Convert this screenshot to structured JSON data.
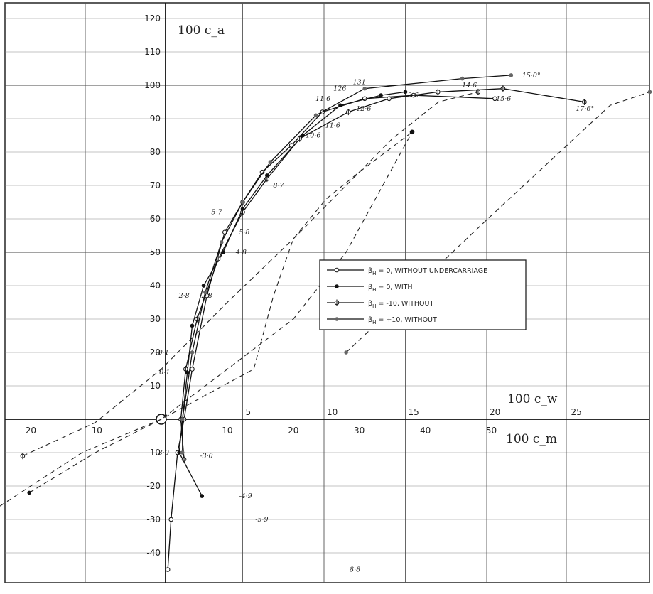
{
  "chart_data": {
    "type": "line",
    "title": "",
    "ylabel": "100 c_a",
    "xlabel_top": "100 c_w",
    "xlabel_bottom": "100 c_m",
    "ylim": [
      -47,
      122
    ],
    "xlim_w": [
      -5,
      29
    ],
    "xlim_m": [
      -22.5,
      50.5
    ],
    "y_ticks": [
      "120",
      "110",
      "100",
      "90",
      "80",
      "70",
      "60",
      "50",
      "40",
      "30",
      "20",
      "10",
      "-10",
      "-20",
      "-30",
      "-40"
    ],
    "y_tick_values": [
      120,
      110,
      100,
      90,
      80,
      70,
      60,
      50,
      40,
      30,
      20,
      10,
      -10,
      -20,
      -30,
      -40
    ],
    "x_ticks_w": [
      "5",
      "10",
      "15",
      "20",
      "25"
    ],
    "x_tick_values_w": [
      5,
      10,
      15,
      20,
      25
    ],
    "x_ticks_m": [
      "-20",
      "-10",
      "10",
      "20",
      "30",
      "40",
      "50"
    ],
    "x_tick_values_m": [
      -20,
      -10,
      10,
      20,
      30,
      40,
      50
    ],
    "grid": true,
    "legend_position": "center-right",
    "legend": [
      {
        "beta": "β",
        "sub": "H",
        "rest": " = 0,  WITHOUT  UNDERCARRIAGE"
      },
      {
        "beta": "β",
        "sub": "H",
        "rest": " = 0,  WITH"
      },
      {
        "beta": "β",
        "sub": "H",
        "rest": " = -10, WITHOUT"
      },
      {
        "beta": "β",
        "sub": "H",
        "rest": " = +10, WITHOUT"
      }
    ],
    "series": [
      {
        "marker": "open",
        "points": [
          [
            0.4,
            -45
          ],
          [
            0.6,
            -30
          ],
          [
            1.0,
            -10
          ],
          [
            1.4,
            0
          ],
          [
            1.9,
            15
          ],
          [
            2.8,
            37
          ],
          [
            3.9,
            56
          ],
          [
            5.0,
            65
          ],
          [
            6.2,
            74
          ],
          [
            8.0,
            82
          ],
          [
            9.9,
            92
          ],
          [
            12.5,
            96
          ],
          [
            15.5,
            97
          ],
          [
            20.5,
            96
          ]
        ]
      },
      {
        "marker": "filled",
        "points": [
          [
            2.5,
            -23
          ],
          [
            1.1,
            -10
          ],
          [
            1.3,
            0
          ],
          [
            1.6,
            14
          ],
          [
            1.9,
            28
          ],
          [
            2.6,
            40
          ],
          [
            3.8,
            50
          ],
          [
            5.0,
            63
          ],
          [
            6.5,
            73
          ],
          [
            8.7,
            85
          ],
          [
            11.0,
            94
          ],
          [
            13.5,
            97
          ],
          [
            15.0,
            98
          ]
        ]
      },
      {
        "marker": "half",
        "points": [
          [
            1.4,
            -12
          ],
          [
            1.2,
            0
          ],
          [
            1.5,
            15
          ],
          [
            2.2,
            30
          ],
          [
            3.5,
            48
          ],
          [
            5.0,
            62
          ],
          [
            6.5,
            72
          ],
          [
            8.5,
            84
          ],
          [
            11.5,
            92
          ],
          [
            14.0,
            96
          ],
          [
            17.0,
            98
          ],
          [
            21.0,
            99
          ],
          [
            26.0,
            95
          ]
        ]
      },
      {
        "marker": "grey",
        "points": [
          [
            1.3,
            -10
          ],
          [
            1.3,
            0
          ],
          [
            1.9,
            20
          ],
          [
            2.7,
            38
          ],
          [
            3.7,
            53
          ],
          [
            5.0,
            65
          ],
          [
            6.7,
            77
          ],
          [
            9.5,
            91
          ],
          [
            12.5,
            99
          ],
          [
            18.5,
            102
          ],
          [
            21.5,
            103
          ]
        ]
      }
    ],
    "dashed_cm": [
      {
        "marker": "open",
        "points": [
          [
            -46,
            -43
          ],
          [
            -26,
            -28
          ],
          [
            -12,
            -10
          ],
          [
            0,
            0
          ],
          [
            14,
            15
          ],
          [
            17,
            37
          ],
          [
            20,
            54
          ],
          [
            25,
            66
          ],
          [
            30,
            74
          ],
          [
            38,
            86
          ]
        ]
      },
      {
        "marker": "filled",
        "points": [
          [
            -20,
            -22
          ],
          [
            -10,
            -10
          ],
          [
            0,
            0
          ],
          [
            20,
            30
          ],
          [
            28,
            50
          ],
          [
            38,
            86
          ]
        ]
      },
      {
        "marker": "half",
        "points": [
          [
            -21,
            -11
          ],
          [
            -10,
            -1
          ],
          [
            0,
            15
          ],
          [
            10,
            35
          ],
          [
            20,
            54
          ],
          [
            28,
            70
          ],
          [
            35,
            84
          ],
          [
            42,
            95
          ],
          [
            48,
            98
          ]
        ]
      },
      {
        "marker": "grey",
        "points": [
          [
            28,
            20
          ],
          [
            50,
            61
          ],
          [
            68,
            94
          ],
          [
            74,
            98
          ]
        ]
      }
    ],
    "annotations": [
      {
        "text": "8·8",
        "x": 11.4,
        "y": -45
      },
      {
        "text": "-5·9",
        "x": 5.6,
        "y": -30
      },
      {
        "text": "-4·9",
        "x": 4.6,
        "y": -23
      },
      {
        "text": "-3·0",
        "x": -0.5,
        "y": -10
      },
      {
        "text": "-3·0",
        "x": 2.2,
        "y": -11
      },
      {
        "text": "0·1",
        "x": -0.3,
        "y": 14
      },
      {
        "text": "-0·1",
        "x": -0.5,
        "y": 20
      },
      {
        "text": "2·8",
        "x": 0.9,
        "y": 37
      },
      {
        "text": "2·8",
        "x": 2.3,
        "y": 37
      },
      {
        "text": "4·8",
        "x": 4.4,
        "y": 50
      },
      {
        "text": "5·8",
        "x": 4.6,
        "y": 56
      },
      {
        "text": "5·7",
        "x": 2.9,
        "y": 62
      },
      {
        "text": "8·7",
        "x": 6.7,
        "y": 70
      },
      {
        "text": "10·6",
        "x": 8.7,
        "y": 85
      },
      {
        "text": "11·6",
        "x": 9.9,
        "y": 88
      },
      {
        "text": "11·6",
        "x": 9.3,
        "y": 96
      },
      {
        "text": "12·6",
        "x": 11.8,
        "y": 93
      },
      {
        "text": "126",
        "x": 10.4,
        "y": 99
      },
      {
        "text": "131",
        "x": 11.6,
        "y": 101
      },
      {
        "text": "13·6",
        "x": 14.7,
        "y": 97
      },
      {
        "text": "14·6",
        "x": 18.3,
        "y": 100
      },
      {
        "text": "15·6",
        "x": 20.4,
        "y": 96
      },
      {
        "text": "15·0°",
        "x": 22.0,
        "y": 103
      },
      {
        "text": "17·6°",
        "x": 25.3,
        "y": 93
      }
    ]
  }
}
